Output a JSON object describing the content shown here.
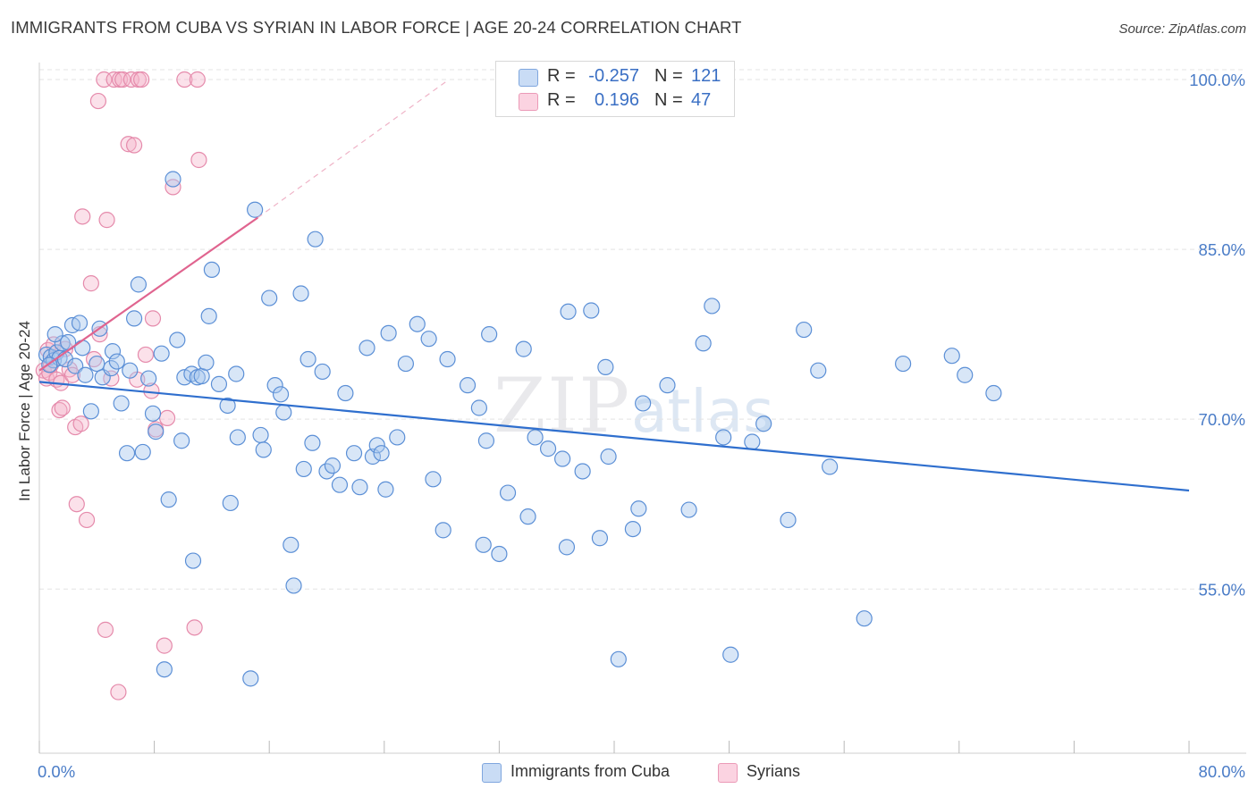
{
  "header": {
    "title": "IMMIGRANTS FROM CUBA VS SYRIAN IN LABOR FORCE | AGE 20-24 CORRELATION CHART",
    "source": "Source: ZipAtlas.com"
  },
  "watermark": {
    "zip": "ZIP",
    "atlas": "atlas"
  },
  "stats": {
    "rows": [
      {
        "r_label": "R =",
        "r_value": "-0.257",
        "n_label": "N =",
        "n_value": "121",
        "color": "#a9c7ee"
      },
      {
        "r_label": "R =",
        "r_value": "0.196",
        "n_label": "N =",
        "n_value": "47",
        "color": "#f5b4ca"
      }
    ]
  },
  "legend": {
    "items": [
      {
        "label": "Immigrants from Cuba",
        "color": "#a9c7ee"
      },
      {
        "label": "Syrians",
        "color": "#f5b4ca"
      }
    ]
  },
  "colors": {
    "cuba_fill": "rgba(169,199,238,0.45)",
    "cuba_stroke": "#5b8fd6",
    "cuba_line": "#2f6fce",
    "syrian_fill": "rgba(245,180,202,0.4)",
    "syrian_stroke": "#e58aab",
    "syrian_line": "#e0648f",
    "grid": "#e3e3e3",
    "tick_text": "#4a7cc7"
  },
  "chart_data": {
    "type": "scatter",
    "title": "IMMIGRANTS FROM CUBA VS SYRIAN IN LABOR FORCE | AGE 20-24 CORRELATION CHART",
    "xlabel": "",
    "ylabel": "In Labor Force | Age 20-24",
    "xlim": [
      0,
      80
    ],
    "ylim": [
      40.5,
      101.5
    ],
    "x_tick_labels": [
      {
        "value": 0,
        "label": "0.0%"
      },
      {
        "value": 80,
        "label": "80.0%"
      }
    ],
    "x_minor_ticks": [
      0,
      8,
      16,
      24,
      32,
      40,
      48,
      56,
      64,
      72,
      80
    ],
    "y_ticks": [
      {
        "value": 100,
        "label": "100.0%"
      },
      {
        "value": 85,
        "label": "85.0%"
      },
      {
        "value": 70,
        "label": "70.0%"
      },
      {
        "value": 55,
        "label": "55.0%"
      }
    ],
    "series": [
      {
        "name": "Immigrants from Cuba",
        "trend": {
          "x": [
            0,
            80
          ],
          "y": [
            73.3,
            63.7
          ],
          "style": "solid"
        },
        "points": [
          [
            0.5,
            75.7
          ],
          [
            0.8,
            75.5
          ],
          [
            1.0,
            75.2
          ],
          [
            1.2,
            75.9
          ],
          [
            1.4,
            75.4
          ],
          [
            1.6,
            76.7
          ],
          [
            1.8,
            75.3
          ],
          [
            1.1,
            77.5
          ],
          [
            2.0,
            76.8
          ],
          [
            2.3,
            78.3
          ],
          [
            2.5,
            74.7
          ],
          [
            2.8,
            78.5
          ],
          [
            3.0,
            76.3
          ],
          [
            3.2,
            73.9
          ],
          [
            3.6,
            70.7
          ],
          [
            4.0,
            74.9
          ],
          [
            4.2,
            78.0
          ],
          [
            4.4,
            73.7
          ],
          [
            5.0,
            74.5
          ],
          [
            5.1,
            76.0
          ],
          [
            5.4,
            75.1
          ],
          [
            5.7,
            71.4
          ],
          [
            6.1,
            67.0
          ],
          [
            6.3,
            74.3
          ],
          [
            6.6,
            78.9
          ],
          [
            6.9,
            81.9
          ],
          [
            7.2,
            67.1
          ],
          [
            7.6,
            73.6
          ],
          [
            7.9,
            70.5
          ],
          [
            8.1,
            68.9
          ],
          [
            8.5,
            75.8
          ],
          [
            9.0,
            62.9
          ],
          [
            9.3,
            91.2
          ],
          [
            9.6,
            77.0
          ],
          [
            9.9,
            68.1
          ],
          [
            10.1,
            73.7
          ],
          [
            10.6,
            74.0
          ],
          [
            10.7,
            57.5
          ],
          [
            11.0,
            73.7
          ],
          [
            11.3,
            73.8
          ],
          [
            11.6,
            75.0
          ],
          [
            11.8,
            79.1
          ],
          [
            12.0,
            83.2
          ],
          [
            12.5,
            73.1
          ],
          [
            13.1,
            71.2
          ],
          [
            13.3,
            62.6
          ],
          [
            13.7,
            74.0
          ],
          [
            13.8,
            68.4
          ],
          [
            15.0,
            88.5
          ],
          [
            15.4,
            68.6
          ],
          [
            15.6,
            67.3
          ],
          [
            16.0,
            80.7
          ],
          [
            16.4,
            73.0
          ],
          [
            16.8,
            72.2
          ],
          [
            17.0,
            70.6
          ],
          [
            17.5,
            58.9
          ],
          [
            17.7,
            55.3
          ],
          [
            18.2,
            81.1
          ],
          [
            18.4,
            65.6
          ],
          [
            18.7,
            75.3
          ],
          [
            19.0,
            67.9
          ],
          [
            19.2,
            85.9
          ],
          [
            19.7,
            74.2
          ],
          [
            20.0,
            65.4
          ],
          [
            20.4,
            65.9
          ],
          [
            20.9,
            64.2
          ],
          [
            21.3,
            72.3
          ],
          [
            21.9,
            67.0
          ],
          [
            22.3,
            64.0
          ],
          [
            22.8,
            76.3
          ],
          [
            23.2,
            66.7
          ],
          [
            23.5,
            67.7
          ],
          [
            23.8,
            67.0
          ],
          [
            24.1,
            63.8
          ],
          [
            24.3,
            77.6
          ],
          [
            24.9,
            68.4
          ],
          [
            25.5,
            74.9
          ],
          [
            26.3,
            78.4
          ],
          [
            27.1,
            77.1
          ],
          [
            27.4,
            64.7
          ],
          [
            28.1,
            60.2
          ],
          [
            28.4,
            75.3
          ],
          [
            29.8,
            73.0
          ],
          [
            30.6,
            71.0
          ],
          [
            30.9,
            58.9
          ],
          [
            31.1,
            68.1
          ],
          [
            31.3,
            77.5
          ],
          [
            32.0,
            58.1
          ],
          [
            32.6,
            63.5
          ],
          [
            33.7,
            76.2
          ],
          [
            34.0,
            61.4
          ],
          [
            34.5,
            68.4
          ],
          [
            35.4,
            67.4
          ],
          [
            36.4,
            66.5
          ],
          [
            36.7,
            58.7
          ],
          [
            36.8,
            79.5
          ],
          [
            37.8,
            65.4
          ],
          [
            38.4,
            79.6
          ],
          [
            39.0,
            59.5
          ],
          [
            39.4,
            74.6
          ],
          [
            39.6,
            66.7
          ],
          [
            40.3,
            48.8
          ],
          [
            41.3,
            60.3
          ],
          [
            41.7,
            62.1
          ],
          [
            42.0,
            71.4
          ],
          [
            43.7,
            73.0
          ],
          [
            45.2,
            62.0
          ],
          [
            46.2,
            76.7
          ],
          [
            46.8,
            80.0
          ],
          [
            47.6,
            68.4
          ],
          [
            48.1,
            49.2
          ],
          [
            49.6,
            68.0
          ],
          [
            50.4,
            69.6
          ],
          [
            52.1,
            61.1
          ],
          [
            53.2,
            77.9
          ],
          [
            54.2,
            74.3
          ],
          [
            55.0,
            65.8
          ],
          [
            57.4,
            52.4
          ],
          [
            60.1,
            74.9
          ],
          [
            63.5,
            75.6
          ],
          [
            64.4,
            73.9
          ],
          [
            66.4,
            72.3
          ],
          [
            8.7,
            47.9
          ],
          [
            14.7,
            47.1
          ],
          [
            0.7,
            74.8
          ]
        ]
      },
      {
        "name": "Syrians",
        "trend": {
          "x": [
            0,
            15.2
          ],
          "y": [
            74.3,
            87.8
          ],
          "style": "solid",
          "extension_to": [
            28.5,
            100.0
          ],
          "extension_style": "dashed"
        },
        "points": [
          [
            0.3,
            74.3
          ],
          [
            0.5,
            73.6
          ],
          [
            0.6,
            76.1
          ],
          [
            0.7,
            74.1
          ],
          [
            0.8,
            74.8
          ],
          [
            1.0,
            76.6
          ],
          [
            1.2,
            73.5
          ],
          [
            1.4,
            70.8
          ],
          [
            1.5,
            73.2
          ],
          [
            1.6,
            71.0
          ],
          [
            1.8,
            76.2
          ],
          [
            2.1,
            74.4
          ],
          [
            2.3,
            73.9
          ],
          [
            2.5,
            69.3
          ],
          [
            2.6,
            62.5
          ],
          [
            2.9,
            69.6
          ],
          [
            3.0,
            87.9
          ],
          [
            3.3,
            61.1
          ],
          [
            3.6,
            82.0
          ],
          [
            3.8,
            75.3
          ],
          [
            4.1,
            98.1
          ],
          [
            4.2,
            77.5
          ],
          [
            4.5,
            100.0
          ],
          [
            4.6,
            51.4
          ],
          [
            4.7,
            87.6
          ],
          [
            5.2,
            100.0
          ],
          [
            5.0,
            73.6
          ],
          [
            5.5,
            45.9
          ],
          [
            5.6,
            100.0
          ],
          [
            5.8,
            100.0
          ],
          [
            6.2,
            94.3
          ],
          [
            6.4,
            100.0
          ],
          [
            6.6,
            94.2
          ],
          [
            6.8,
            73.5
          ],
          [
            6.9,
            100.0
          ],
          [
            7.1,
            100.0
          ],
          [
            7.4,
            75.7
          ],
          [
            7.8,
            72.5
          ],
          [
            7.9,
            78.9
          ],
          [
            8.1,
            69.1
          ],
          [
            8.7,
            50.0
          ],
          [
            8.9,
            70.1
          ],
          [
            9.3,
            90.5
          ],
          [
            10.1,
            100.0
          ],
          [
            10.8,
            51.6
          ],
          [
            11.0,
            100.0
          ],
          [
            11.1,
            92.9
          ]
        ]
      }
    ]
  }
}
